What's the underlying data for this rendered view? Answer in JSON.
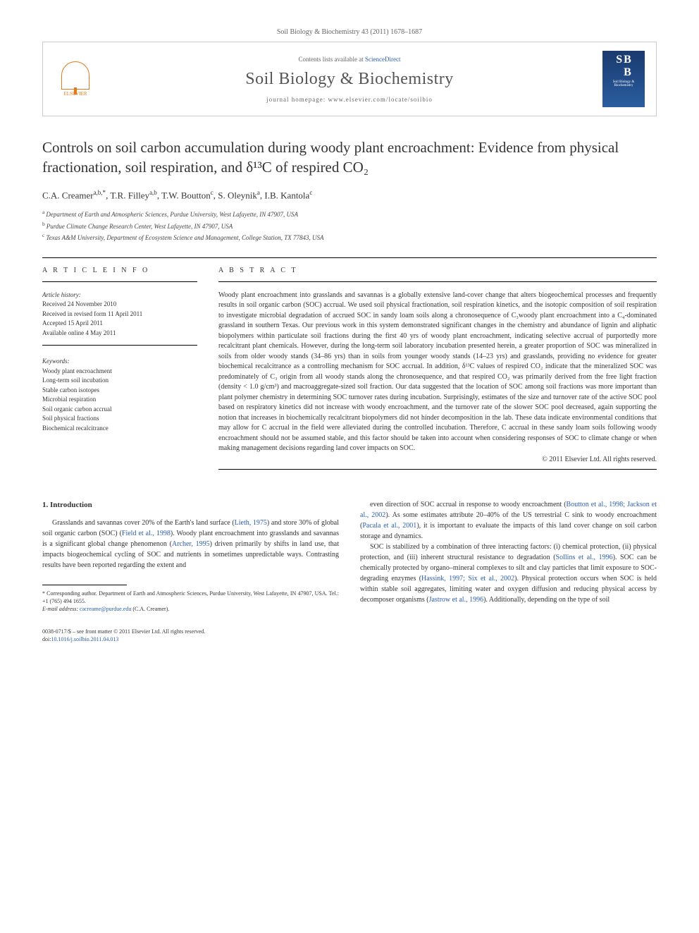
{
  "header": {
    "citation": "Soil Biology & Biochemistry 43 (2011) 1678–1687"
  },
  "journal_box": {
    "publisher_name": "ELSEVIER",
    "contents_prefix": "Contents lists available at ",
    "contents_link": "ScienceDirect",
    "journal_name": "Soil Biology & Biochemistry",
    "homepage": "journal homepage: www.elsevier.com/locate/soilbio",
    "cover_letters_1": "S",
    "cover_letters_2": "B",
    "cover_letters_3": "B",
    "cover_title": "Soil Biology & Biochemistry"
  },
  "article": {
    "title": "Controls on soil carbon accumulation during woody plant encroachment: Evidence from physical fractionation, soil respiration, and δ¹³C of respired CO₂",
    "authors_html": "C.A. Creamer",
    "author_1": "C.A. Creamer",
    "author_1_sup": "a,b,*",
    "author_2": ", T.R. Filley",
    "author_2_sup": "a,b",
    "author_3": ", T.W. Boutton",
    "author_3_sup": "c",
    "author_4": ", S. Oleynik",
    "author_4_sup": "a",
    "author_5": ", I.B. Kantola",
    "author_5_sup": "c",
    "affiliations": {
      "a": "Department of Earth and Atmospheric Sciences, Purdue University, West Lafayette, IN 47907, USA",
      "b": "Purdue Climate Change Research Center, West Lafayette, IN 47907, USA",
      "c": "Texas A&M University, Department of Ecosystem Science and Management, College Station, TX 77843, USA"
    }
  },
  "article_info": {
    "heading": "A R T I C L E  I N F O",
    "history_label": "Article history:",
    "received": "Received 24 November 2010",
    "revised": "Received in revised form 11 April 2011",
    "accepted": "Accepted 15 April 2011",
    "online": "Available online 4 May 2011",
    "keywords_label": "Keywords:",
    "keywords": [
      "Woody plant encroachment",
      "Long-term soil incubation",
      "Stable carbon isotopes",
      "Microbial respiration",
      "Soil organic carbon accrual",
      "Soil physical fractions",
      "Biochemical recalcitrance"
    ]
  },
  "abstract": {
    "heading": "A B S T R A C T",
    "text": "Woody plant encroachment into grasslands and savannas is a globally extensive land-cover change that alters biogeochemical processes and frequently results in soil organic carbon (SOC) accrual. We used soil physical fractionation, soil respiration kinetics, and the isotopic composition of soil respiration to investigate microbial degradation of accrued SOC in sandy loam soils along a chronosequence of C₃woody plant encroachment into a C₄-dominated grassland in southern Texas. Our previous work in this system demonstrated significant changes in the chemistry and abundance of lignin and aliphatic biopolymers within particulate soil fractions during the first 40 yrs of woody plant encroachment, indicating selective accrual of purportedly more recalcitrant plant chemicals. However, during the long-term soil laboratory incubation presented herein, a greater proportion of SOC was mineralized in soils from older woody stands (34–86 yrs) than in soils from younger woody stands (14–23 yrs) and grasslands, providing no evidence for greater biochemical recalcitrance as a controlling mechanism for SOC accrual. In addition, δ¹³C values of respired CO₂ indicate that the mineralized SOC was predominately of C₃ origin from all woody stands along the chronosequence, and that respired CO₂ was primarily derived from the free light fraction (density < 1.0 g/cm³) and macroaggregate-sized soil fraction. Our data suggested that the location of SOC among soil fractions was more important than plant polymer chemistry in determining SOC turnover rates during incubation. Surprisingly, estimates of the size and turnover rate of the active SOC pool based on respiratory kinetics did not increase with woody encroachment, and the turnover rate of the slower SOC pool decreased, again supporting the notion that increases in biochemically recalcitrant biopolymers did not hinder decomposition in the lab. These data indicate environmental conditions that may allow for C accrual in the field were alleviated during the controlled incubation. Therefore, C accrual in these sandy loam soils following woody encroachment should not be assumed stable, and this factor should be taken into account when considering responses of SOC to climate change or when making management decisions regarding land cover impacts on SOC.",
    "copyright": "© 2011 Elsevier Ltd. All rights reserved."
  },
  "body": {
    "section_1_heading": "1. Introduction",
    "col1_para1_a": "Grasslands and savannas cover 20% of the Earth's land surface (",
    "col1_cite1": "Lieth, 1975",
    "col1_para1_b": ") and store 30% of global soil organic carbon (SOC) (",
    "col1_cite2": "Field et al., 1998",
    "col1_para1_c": "). Woody plant encroachment into grasslands and savannas is a significant global change phenomenon (",
    "col1_cite3": "Archer, 1995",
    "col1_para1_d": ") driven primarily by shifts in land use, that impacts biogeochemical cycling of SOC and nutrients in sometimes unpredictable ways. Contrasting results have been reported regarding the extent and",
    "col2_para1_a": "even direction of SOC accrual in response to woody encroachment (",
    "col2_cite1": "Boutton et al., 1998; Jackson et al., 2002",
    "col2_para1_b": "). As some estimates attribute 20–40% of the US terrestrial C sink to woody encroachment (",
    "col2_cite2": "Pacala et al., 2001",
    "col2_para1_c": "), it is important to evaluate the impacts of this land cover change on soil carbon storage and dynamics.",
    "col2_para2_a": "SOC is stabilized by a combination of three interacting factors: (i) chemical protection, (ii) physical protection, and (iii) inherent structural resistance to degradation (",
    "col2_cite3": "Sollins et al., 1996",
    "col2_para2_b": "). SOC can be chemically protected by organo–mineral complexes to silt and clay particles that limit exposure to SOC-degrading enzymes (",
    "col2_cite4": "Hassink, 1997; Six et al., 2002",
    "col2_para2_c": "). Physical protection occurs when SOC is held within stable soil aggregates, limiting water and oxygen diffusion and reducing physical access by decomposer organisms (",
    "col2_cite5": "Jastrow et al., 1996",
    "col2_para2_d": "). Additionally, depending on the type of soil"
  },
  "footnote": {
    "text_a": "* Corresponding author. Department of Earth and Atmospheric Sciences, Purdue University, West Lafayette, IN 47907, USA. Tel.: +1 (765) 494 1655.",
    "email_label": "E-mail address: ",
    "email": "cacreame@purdue.edu",
    "email_suffix": " (C.A. Creamer)."
  },
  "footer": {
    "line1": "0038-0717/$ – see front matter © 2011 Elsevier Ltd. All rights reserved.",
    "doi_prefix": "doi:",
    "doi": "10.1016/j.soilbio.2011.04.013"
  }
}
